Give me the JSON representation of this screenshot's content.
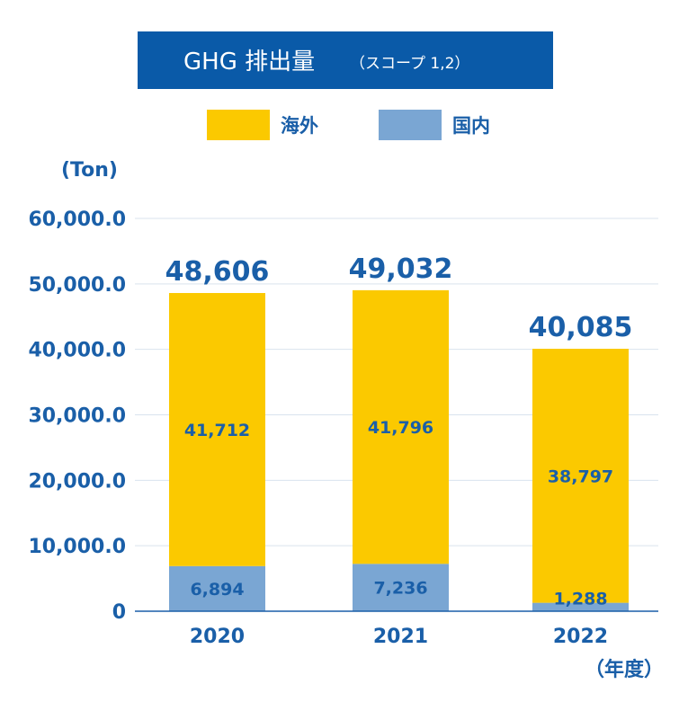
{
  "colors": {
    "title_bg": "#0a5aa8",
    "overseas": "#fbc900",
    "domestic": "#7aa6d3",
    "text": "#1a5fa8",
    "grid": "#d9e3ee",
    "axis": "#1a5fa8"
  },
  "chart_data": {
    "type": "bar",
    "stacked": true,
    "title": "GHG 排出量",
    "subtitle": "（スコープ 1,2）",
    "ylabel": "(Ton)",
    "xlabel": "（年度）",
    "categories": [
      "2020",
      "2021",
      "2022"
    ],
    "yticks": [
      "0",
      "10,000.0",
      "20,000.0",
      "30,000.0",
      "40,000.0",
      "50,000.0",
      "60,000.0"
    ],
    "ylim": [
      0,
      60000
    ],
    "grid": true,
    "legend_position": "top",
    "series": [
      {
        "name": "国内",
        "values": [
          6894,
          7236,
          1288
        ],
        "labels": [
          "6,894",
          "7,236",
          "1,288"
        ]
      },
      {
        "name": "海外",
        "values": [
          41712,
          41796,
          38797
        ],
        "labels": [
          "41,712",
          "41,796",
          "38,797"
        ]
      }
    ],
    "totals": [
      "48,606",
      "49,032",
      "40,085"
    ]
  }
}
